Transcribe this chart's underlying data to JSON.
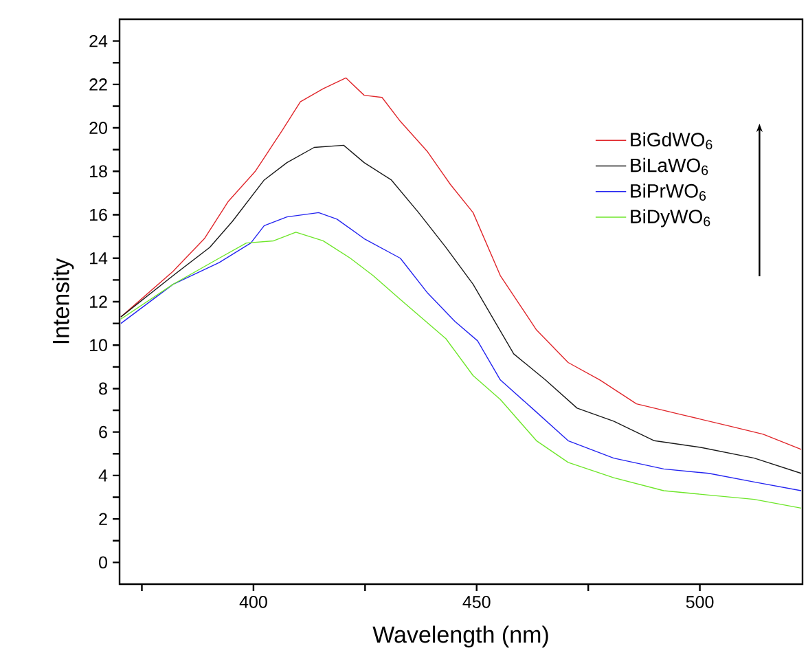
{
  "chart_data": {
    "type": "line",
    "xlabel": "Wavelength (nm)",
    "ylabel": "Intensity",
    "xlim": [
      370,
      523
    ],
    "ylim": [
      -1,
      25
    ],
    "xticks": [
      {
        "value": 375,
        "label": null
      },
      400,
      {
        "value": 425,
        "label": null
      },
      450,
      {
        "value": 475,
        "label": null
      },
      500
    ],
    "yticks": [
      0,
      {
        "value": 1,
        "label": null
      },
      2,
      {
        "value": 3,
        "label": null
      },
      4,
      {
        "value": 5,
        "label": null
      },
      6,
      {
        "value": 7,
        "label": null
      },
      8,
      {
        "value": 9,
        "label": null
      },
      10,
      {
        "value": 11,
        "label": null
      },
      12,
      {
        "value": 13,
        "label": null
      },
      14,
      {
        "value": 15,
        "label": null
      },
      16,
      {
        "value": 17,
        "label": null
      },
      18,
      {
        "value": 19,
        "label": null
      },
      20,
      {
        "value": 21,
        "label": null
      },
      22,
      {
        "value": 23,
        "label": null
      },
      24
    ],
    "legend": "top right",
    "grid": false,
    "marker": "none",
    "line_style": "solid",
    "series": [
      {
        "name": "BiGdWO$_{6}$",
        "color": "#e0262b",
        "x": [
          370.3,
          382,
          389,
          394.3,
          400.4,
          406.5,
          410.5,
          415.6,
          420.7,
          424.8,
          428.8,
          432.9,
          439,
          444.1,
          449.2,
          455.3,
          463.4,
          470.5,
          477.6,
          485.8,
          495.9,
          506.1,
          514.2,
          522.7
        ],
        "values": [
          11.3,
          13.4,
          14.9,
          16.6,
          18.0,
          19.9,
          21.2,
          21.8,
          22.3,
          21.5,
          21.4,
          20.3,
          18.9,
          17.4,
          16.1,
          13.2,
          10.7,
          9.2,
          8.4,
          7.3,
          6.8,
          6.3,
          5.9,
          5.2
        ]
      },
      {
        "name": "BiLaWO$_{6}$",
        "color": "#1a1a1a",
        "x": [
          370.3,
          382,
          390.2,
          395.3,
          402.4,
          407.5,
          413.6,
          420.2,
          424.8,
          430.9,
          437,
          443.1,
          449.2,
          458.3,
          465.4,
          472.5,
          480.7,
          489.8,
          500,
          512.2,
          522.7
        ],
        "values": [
          11.3,
          13.2,
          14.5,
          15.7,
          17.6,
          18.4,
          19.1,
          19.2,
          18.4,
          17.6,
          16.1,
          14.5,
          12.8,
          9.6,
          8.4,
          7.1,
          6.5,
          5.6,
          5.3,
          4.8,
          4.1
        ]
      },
      {
        "name": "BiPrWO$_{6}$",
        "color": "#2424f0",
        "x": [
          370.3,
          382,
          392.3,
          399.4,
          402.4,
          407.5,
          414.6,
          418.7,
          424.8,
          432.9,
          439,
          445.1,
          450.2,
          455.3,
          462.4,
          470.5,
          480.7,
          491.9,
          502,
          512.2,
          522.7
        ],
        "values": [
          11.0,
          12.8,
          13.8,
          14.7,
          15.5,
          15.9,
          16.1,
          15.8,
          14.9,
          14.0,
          12.4,
          11.1,
          10.2,
          8.4,
          7.1,
          5.6,
          4.8,
          4.3,
          4.1,
          3.7,
          3.3
        ]
      },
      {
        "name": "BiDyWO$_{6}$",
        "color": "#6ee62a",
        "x": [
          370.3,
          382,
          392.3,
          398.4,
          404.5,
          409.5,
          415.6,
          421.7,
          426.8,
          432.9,
          443.1,
          449.2,
          455.3,
          463.4,
          470.5,
          480.7,
          491.9,
          502,
          512.2,
          522.7
        ],
        "values": [
          11.2,
          12.8,
          14.0,
          14.7,
          14.8,
          15.2,
          14.8,
          14.0,
          13.2,
          12.1,
          10.3,
          8.6,
          7.5,
          5.6,
          4.6,
          3.9,
          3.3,
          3.1,
          2.9,
          2.5
        ]
      }
    ]
  }
}
